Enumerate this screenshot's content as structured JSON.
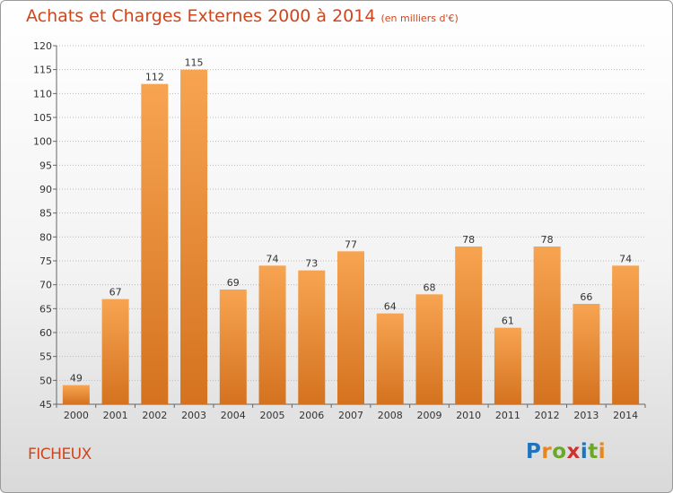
{
  "header": {
    "title": "Achats et Charges Externes 2000 à 2014",
    "unit": "(en milliers d'€)"
  },
  "footer": {
    "commune": "FICHEUX",
    "logo": "Proxiti"
  },
  "colors": {
    "bar_light": "#f7a451",
    "bar_dark": "#d4721f",
    "title": "#d0451b",
    "axis": "#666666",
    "grid": "#bbbbbb"
  },
  "chart_data": {
    "type": "bar",
    "title": "Achats et Charges Externes 2000 à 2014",
    "subtitle": "(en milliers d'€)",
    "xlabel": "",
    "ylabel": "",
    "categories": [
      "2000",
      "2001",
      "2002",
      "2003",
      "2004",
      "2005",
      "2006",
      "2007",
      "2008",
      "2009",
      "2010",
      "2011",
      "2012",
      "2013",
      "2014"
    ],
    "values": [
      49,
      67,
      112,
      115,
      69,
      74,
      73,
      77,
      64,
      68,
      78,
      61,
      78,
      66,
      74
    ],
    "ylim": [
      45,
      120
    ],
    "yticks": [
      45,
      50,
      55,
      60,
      65,
      70,
      75,
      80,
      85,
      90,
      95,
      100,
      105,
      110,
      115,
      120
    ],
    "grid": true,
    "legend": "none"
  }
}
